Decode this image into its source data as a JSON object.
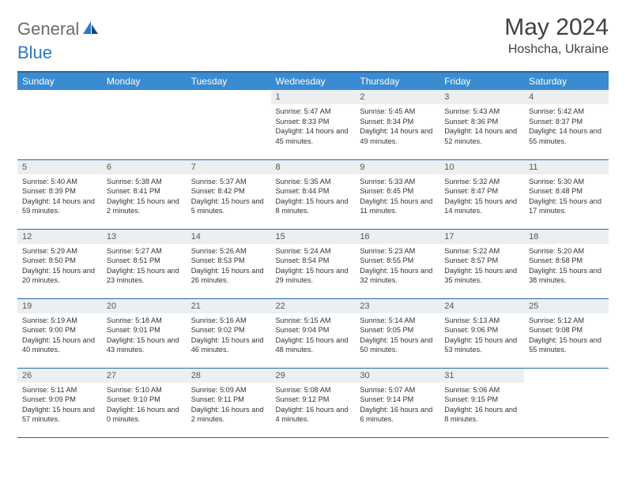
{
  "brand": {
    "general": "General",
    "blue": "Blue"
  },
  "header": {
    "title": "May 2024",
    "location": "Hoshcha, Ukraine"
  },
  "colors": {
    "header_bar": "#3a8bd0",
    "rule": "#2768a6",
    "day_bg": "#eceff1",
    "logo_blue": "#2b78c2",
    "logo_grey": "#6b6b6b"
  },
  "weekdays": [
    "Sunday",
    "Monday",
    "Tuesday",
    "Wednesday",
    "Thursday",
    "Friday",
    "Saturday"
  ],
  "weeks": [
    [
      null,
      null,
      null,
      {
        "n": "1",
        "sr": "5:47 AM",
        "ss": "8:33 PM",
        "dl": "14 hours and 45 minutes."
      },
      {
        "n": "2",
        "sr": "5:45 AM",
        "ss": "8:34 PM",
        "dl": "14 hours and 49 minutes."
      },
      {
        "n": "3",
        "sr": "5:43 AM",
        "ss": "8:36 PM",
        "dl": "14 hours and 52 minutes."
      },
      {
        "n": "4",
        "sr": "5:42 AM",
        "ss": "8:37 PM",
        "dl": "14 hours and 55 minutes."
      }
    ],
    [
      {
        "n": "5",
        "sr": "5:40 AM",
        "ss": "8:39 PM",
        "dl": "14 hours and 59 minutes."
      },
      {
        "n": "6",
        "sr": "5:38 AM",
        "ss": "8:41 PM",
        "dl": "15 hours and 2 minutes."
      },
      {
        "n": "7",
        "sr": "5:37 AM",
        "ss": "8:42 PM",
        "dl": "15 hours and 5 minutes."
      },
      {
        "n": "8",
        "sr": "5:35 AM",
        "ss": "8:44 PM",
        "dl": "15 hours and 8 minutes."
      },
      {
        "n": "9",
        "sr": "5:33 AM",
        "ss": "8:45 PM",
        "dl": "15 hours and 11 minutes."
      },
      {
        "n": "10",
        "sr": "5:32 AM",
        "ss": "8:47 PM",
        "dl": "15 hours and 14 minutes."
      },
      {
        "n": "11",
        "sr": "5:30 AM",
        "ss": "8:48 PM",
        "dl": "15 hours and 17 minutes."
      }
    ],
    [
      {
        "n": "12",
        "sr": "5:29 AM",
        "ss": "8:50 PM",
        "dl": "15 hours and 20 minutes."
      },
      {
        "n": "13",
        "sr": "5:27 AM",
        "ss": "8:51 PM",
        "dl": "15 hours and 23 minutes."
      },
      {
        "n": "14",
        "sr": "5:26 AM",
        "ss": "8:53 PM",
        "dl": "15 hours and 26 minutes."
      },
      {
        "n": "15",
        "sr": "5:24 AM",
        "ss": "8:54 PM",
        "dl": "15 hours and 29 minutes."
      },
      {
        "n": "16",
        "sr": "5:23 AM",
        "ss": "8:55 PM",
        "dl": "15 hours and 32 minutes."
      },
      {
        "n": "17",
        "sr": "5:22 AM",
        "ss": "8:57 PM",
        "dl": "15 hours and 35 minutes."
      },
      {
        "n": "18",
        "sr": "5:20 AM",
        "ss": "8:58 PM",
        "dl": "15 hours and 38 minutes."
      }
    ],
    [
      {
        "n": "19",
        "sr": "5:19 AM",
        "ss": "9:00 PM",
        "dl": "15 hours and 40 minutes."
      },
      {
        "n": "20",
        "sr": "5:18 AM",
        "ss": "9:01 PM",
        "dl": "15 hours and 43 minutes."
      },
      {
        "n": "21",
        "sr": "5:16 AM",
        "ss": "9:02 PM",
        "dl": "15 hours and 46 minutes."
      },
      {
        "n": "22",
        "sr": "5:15 AM",
        "ss": "9:04 PM",
        "dl": "15 hours and 48 minutes."
      },
      {
        "n": "23",
        "sr": "5:14 AM",
        "ss": "9:05 PM",
        "dl": "15 hours and 50 minutes."
      },
      {
        "n": "24",
        "sr": "5:13 AM",
        "ss": "9:06 PM",
        "dl": "15 hours and 53 minutes."
      },
      {
        "n": "25",
        "sr": "5:12 AM",
        "ss": "9:08 PM",
        "dl": "15 hours and 55 minutes."
      }
    ],
    [
      {
        "n": "26",
        "sr": "5:11 AM",
        "ss": "9:09 PM",
        "dl": "15 hours and 57 minutes."
      },
      {
        "n": "27",
        "sr": "5:10 AM",
        "ss": "9:10 PM",
        "dl": "16 hours and 0 minutes."
      },
      {
        "n": "28",
        "sr": "5:09 AM",
        "ss": "9:11 PM",
        "dl": "16 hours and 2 minutes."
      },
      {
        "n": "29",
        "sr": "5:08 AM",
        "ss": "9:12 PM",
        "dl": "16 hours and 4 minutes."
      },
      {
        "n": "30",
        "sr": "5:07 AM",
        "ss": "9:14 PM",
        "dl": "16 hours and 6 minutes."
      },
      {
        "n": "31",
        "sr": "5:06 AM",
        "ss": "9:15 PM",
        "dl": "16 hours and 8 minutes."
      },
      null
    ]
  ],
  "labels": {
    "sunrise": "Sunrise: ",
    "sunset": "Sunset: ",
    "daylight": "Daylight: "
  }
}
